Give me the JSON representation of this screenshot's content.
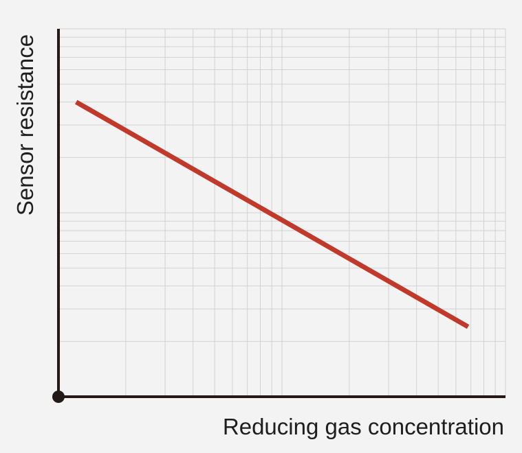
{
  "chart_data": {
    "type": "line",
    "title": "",
    "xlabel": "Reducing gas concentration",
    "ylabel": "Sensor resistance",
    "x_scale": "log",
    "y_scale": "log",
    "xlim": [
      1,
      100
    ],
    "ylim": [
      1,
      100
    ],
    "grid": true,
    "legend": "none",
    "line_color": "#c0392b",
    "axis_color": "#231a17",
    "grid_color": "#d2d2d2",
    "series": [
      {
        "x": [
          1.2,
          68
        ],
        "y": [
          40,
          2.4
        ]
      }
    ]
  }
}
